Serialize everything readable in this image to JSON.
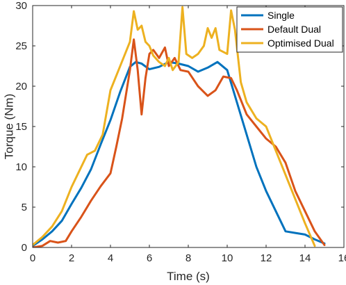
{
  "chart_data": {
    "type": "line",
    "xlabel": "Time (s)",
    "ylabel": "Torque (Nm)",
    "xlim": [
      0,
      16
    ],
    "ylim": [
      0,
      30
    ],
    "xticks": [
      0,
      2,
      4,
      6,
      8,
      10,
      12,
      14,
      16
    ],
    "yticks": [
      0,
      5,
      10,
      15,
      20,
      25,
      30
    ],
    "legend_position": "top-right",
    "grid": false,
    "series": [
      {
        "name": "Single",
        "color": "#0072BD",
        "x": [
          0,
          0.5,
          1.0,
          1.5,
          2.0,
          2.5,
          3.0,
          3.5,
          4.0,
          4.5,
          5.0,
          5.3,
          5.6,
          6.0,
          6.5,
          7.0,
          7.5,
          8.0,
          8.5,
          9.0,
          9.5,
          10.0,
          10.5,
          11.0,
          11.5,
          12.0,
          12.5,
          13.0,
          13.5,
          14.0,
          14.5,
          15.0
        ],
        "y": [
          0.2,
          1.0,
          2.0,
          3.3,
          5.4,
          7.4,
          9.7,
          12.8,
          15.8,
          19.3,
          22.4,
          23.0,
          22.8,
          22.1,
          22.4,
          23.0,
          22.8,
          22.5,
          21.8,
          22.3,
          23.0,
          22.0,
          18.0,
          14.0,
          10.0,
          7.0,
          4.5,
          2.0,
          1.8,
          1.6,
          1.0,
          0.5
        ]
      },
      {
        "name": "Default Dual",
        "color": "#D95319",
        "x": [
          0,
          0.5,
          0.9,
          1.3,
          1.7,
          2.0,
          2.5,
          3.0,
          3.5,
          4.0,
          4.3,
          4.6,
          5.0,
          5.2,
          5.4,
          5.6,
          5.8,
          6.0,
          6.2,
          6.5,
          6.8,
          7.0,
          7.3,
          7.6,
          8.0,
          8.5,
          9.0,
          9.4,
          9.8,
          10.2,
          10.5,
          11.0,
          11.5,
          12.0,
          12.5,
          13.0,
          13.5,
          14.0,
          14.5,
          15.0
        ],
        "y": [
          0,
          0.2,
          0.8,
          0.6,
          0.8,
          2.0,
          3.8,
          5.8,
          7.6,
          9.2,
          12.5,
          16.0,
          22.0,
          25.8,
          22.0,
          16.5,
          21.0,
          24.0,
          24.5,
          23.5,
          24.8,
          22.5,
          23.5,
          22.0,
          21.8,
          20.0,
          18.8,
          19.5,
          21.2,
          21.0,
          19.5,
          16.5,
          15.0,
          13.5,
          12.5,
          10.5,
          7.0,
          4.5,
          2.0,
          0.3
        ]
      },
      {
        "name": "Optimised Dual",
        "color": "#EDB120",
        "x": [
          0,
          0.5,
          1.0,
          1.5,
          2.0,
          2.5,
          2.8,
          3.2,
          3.6,
          4.0,
          4.5,
          5.0,
          5.2,
          5.4,
          5.6,
          5.8,
          6.0,
          6.2,
          6.5,
          6.8,
          7.0,
          7.2,
          7.5,
          7.7,
          7.9,
          8.2,
          8.5,
          8.8,
          9.0,
          9.2,
          9.4,
          9.6,
          10.0,
          10.2,
          10.4,
          10.7,
          11.0,
          11.5,
          12.0,
          12.5,
          13.0,
          13.5,
          14.0,
          14.5
        ],
        "y": [
          0.3,
          1.3,
          2.6,
          4.5,
          7.5,
          10.0,
          11.5,
          12.0,
          14.0,
          19.5,
          22.5,
          25.5,
          29.3,
          27.0,
          27.5,
          25.5,
          25.0,
          23.8,
          23.0,
          22.5,
          23.5,
          22.0,
          23.0,
          29.8,
          24.0,
          23.5,
          24.0,
          25.0,
          27.2,
          26.0,
          27.2,
          24.5,
          24.0,
          29.4,
          27.0,
          20.5,
          18.0,
          16.0,
          15.0,
          12.0,
          9.0,
          6.0,
          3.0,
          0.2
        ]
      }
    ]
  }
}
